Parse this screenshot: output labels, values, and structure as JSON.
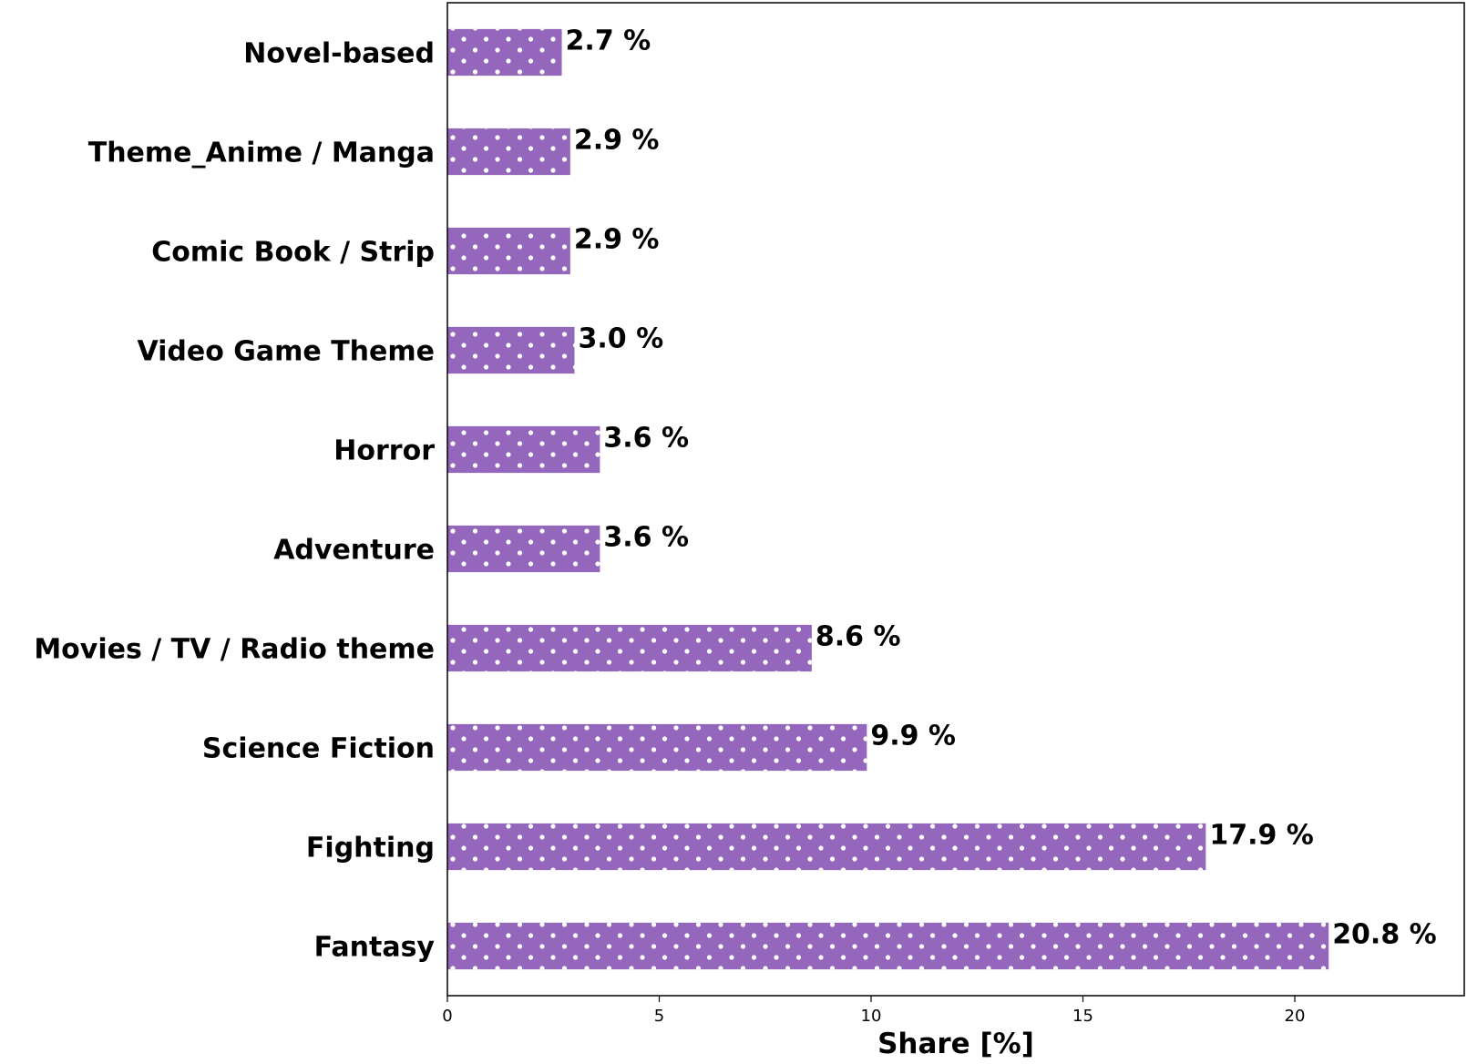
{
  "chart_data": {
    "type": "bar",
    "orientation": "horizontal",
    "categories": [
      "Novel-based",
      "Theme_Anime / Manga",
      "Comic Book / Strip",
      "Video Game Theme",
      "Horror",
      "Adventure",
      "Movies / TV / Radio theme",
      "Science Fiction",
      "Fighting",
      "Fantasy"
    ],
    "values": [
      2.7,
      2.9,
      2.9,
      3.0,
      3.6,
      3.6,
      8.6,
      9.9,
      17.9,
      20.8
    ],
    "value_labels": [
      "2.7 %",
      "2.9 %",
      "2.9 %",
      "3.0 %",
      "3.6 %",
      "3.6 %",
      "8.6 %",
      "9.9 %",
      "17.9 %",
      "20.8 %"
    ],
    "xlabel": "Share [%]",
    "ylabel": "",
    "xlim": [
      0,
      24
    ],
    "xticks": [
      0,
      5,
      10,
      15,
      20
    ],
    "xtick_labels": [
      "0",
      "5",
      "10",
      "15",
      "20"
    ],
    "grid": false,
    "bar_color": "#9467bd",
    "bar_pattern": "white dots"
  }
}
